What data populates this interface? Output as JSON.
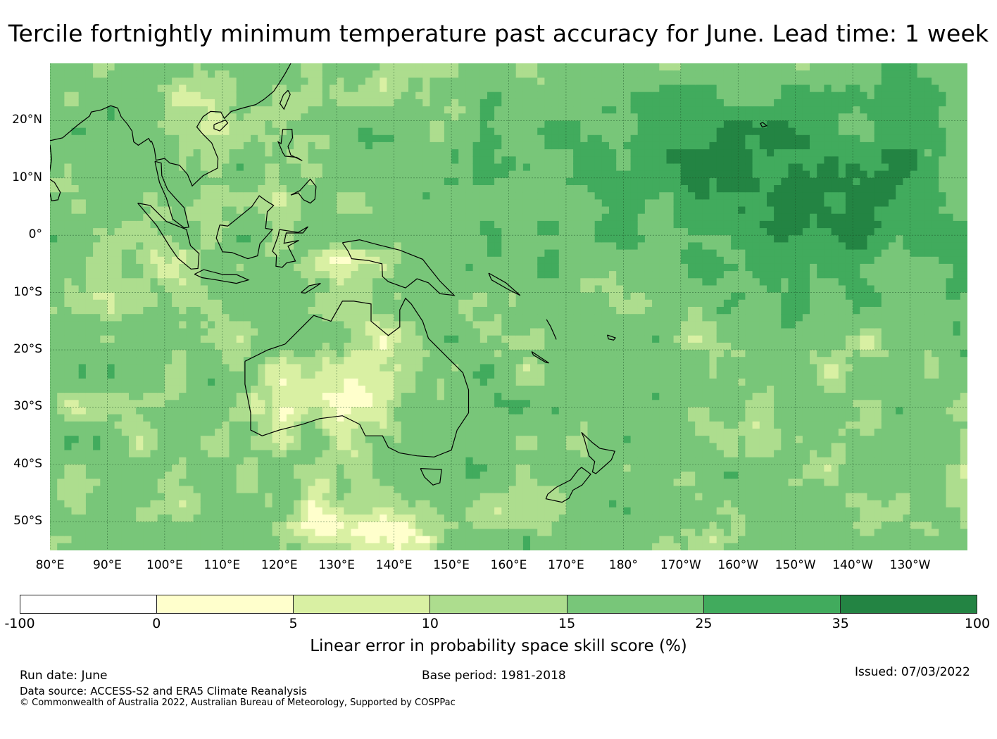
{
  "title": "Tercile fortnightly minimum temperature past accuracy for June. Lead time: 1 week",
  "map": {
    "lon_range": [
      80,
      240
    ],
    "lat_range": [
      -55,
      30
    ],
    "lat_ticks": [
      {
        "value": 20,
        "label": "20°N"
      },
      {
        "value": 10,
        "label": "10°N"
      },
      {
        "value": 0,
        "label": "0°"
      },
      {
        "value": -10,
        "label": "10°S"
      },
      {
        "value": -20,
        "label": "20°S"
      },
      {
        "value": -30,
        "label": "30°S"
      },
      {
        "value": -40,
        "label": "40°S"
      },
      {
        "value": -50,
        "label": "50°S"
      }
    ],
    "lon_ticks": [
      {
        "value": 80,
        "label": "80°E"
      },
      {
        "value": 90,
        "label": "90°E"
      },
      {
        "value": 100,
        "label": "100°E"
      },
      {
        "value": 110,
        "label": "110°E"
      },
      {
        "value": 120,
        "label": "120°E"
      },
      {
        "value": 130,
        "label": "130°E"
      },
      {
        "value": 140,
        "label": "140°E"
      },
      {
        "value": 150,
        "label": "150°E"
      },
      {
        "value": 160,
        "label": "160°E"
      },
      {
        "value": 170,
        "label": "170°E"
      },
      {
        "value": 180,
        "label": "180°"
      },
      {
        "value": 190,
        "label": "170°W"
      },
      {
        "value": 200,
        "label": "160°W"
      },
      {
        "value": 210,
        "label": "150°W"
      },
      {
        "value": 220,
        "label": "140°W"
      },
      {
        "value": 230,
        "label": "130°W"
      }
    ],
    "gridlines": true
  },
  "colorbar": {
    "label": "Linear error in probability space skill score (%)",
    "ticks": [
      "-100",
      "0",
      "5",
      "10",
      "15",
      "25",
      "35",
      "100"
    ],
    "colors": [
      "#ffffff",
      "#ffffcc",
      "#d9f0a3",
      "#addd8e",
      "#78c679",
      "#41ab5d",
      "#238443"
    ]
  },
  "footer": {
    "run_date": "Run date: June",
    "base_period": "Base period: 1981-2018",
    "issued": "Issued: 07/03/2022",
    "data_source": "Data source: ACCESS-S2 and ERA5 Climate Reanalysis",
    "copyright": "© Commonwealth of Australia 2022, Australian Bureau of Meteorology, Supported by COSPPac"
  }
}
